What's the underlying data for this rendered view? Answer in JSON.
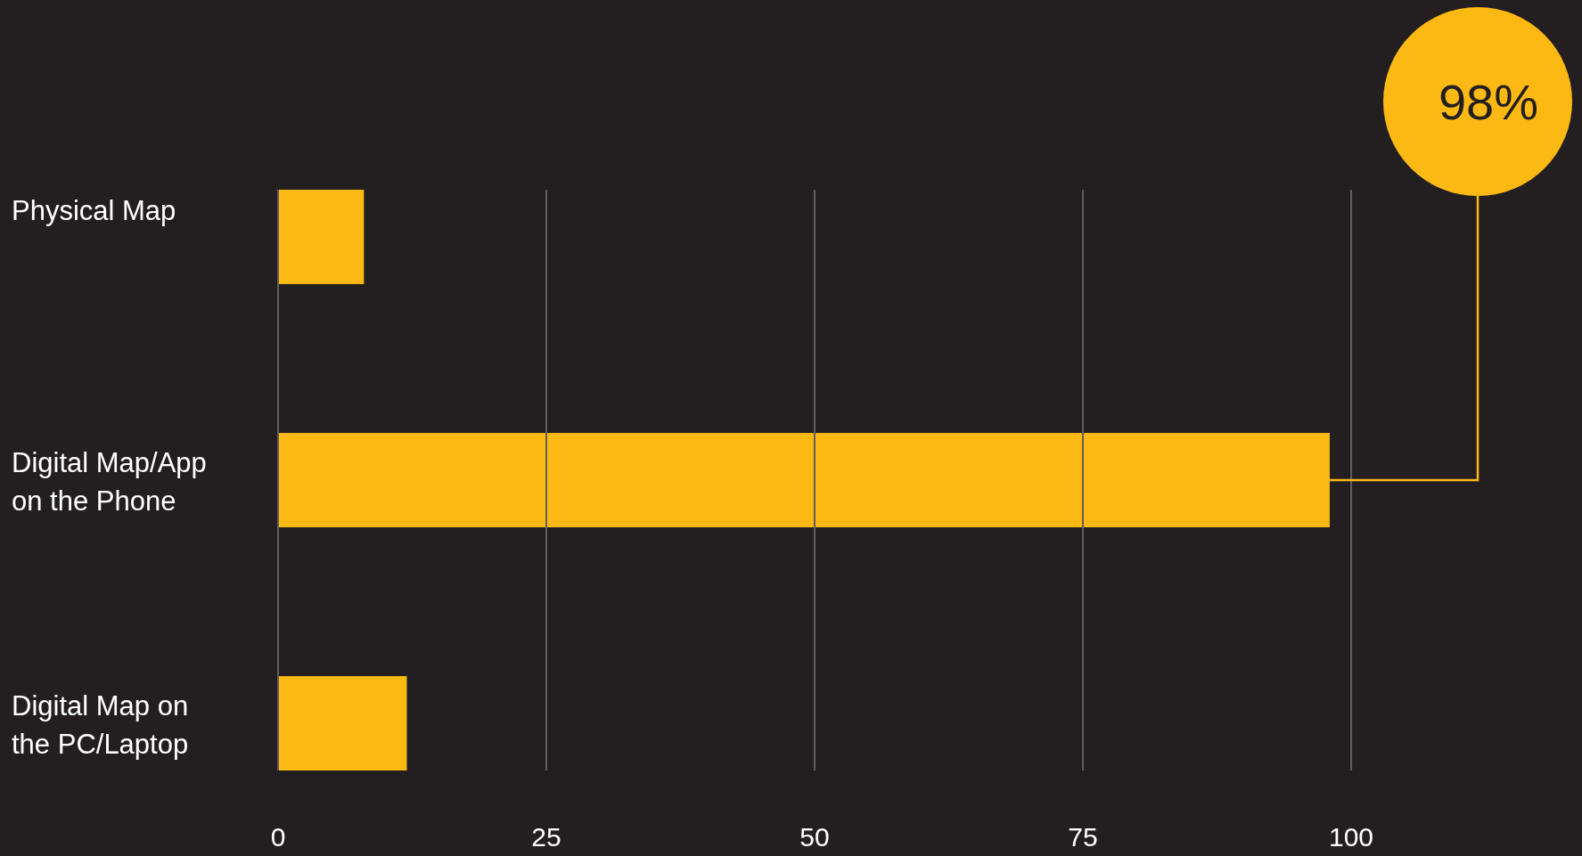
{
  "chart_data": {
    "type": "bar",
    "orientation": "horizontal",
    "categories": [
      "Physical Map",
      "Digital Map/App on the Phone",
      "Digital Map on the PC/Laptop"
    ],
    "values": [
      8,
      98,
      12
    ],
    "color": "#fdb913",
    "xlim": [
      0,
      100
    ],
    "xticks": [
      0,
      25,
      50,
      75,
      100
    ],
    "grid": "x",
    "annotations": [
      "98%"
    ]
  }
}
